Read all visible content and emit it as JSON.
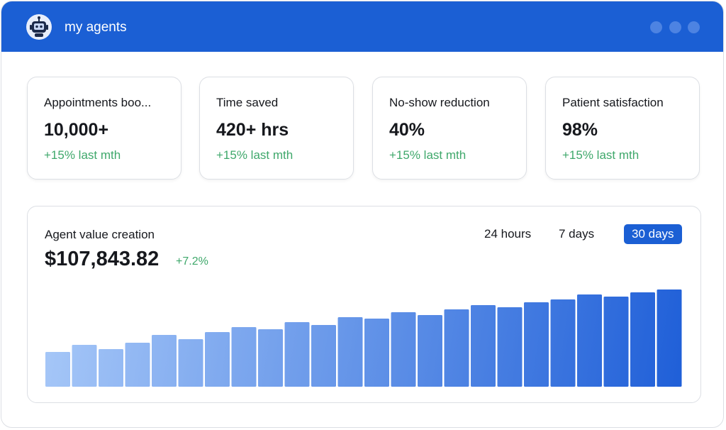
{
  "header": {
    "title": "my agents"
  },
  "stats": [
    {
      "label": "Appointments boo...",
      "value": "10,000+",
      "change": "+15% last mth"
    },
    {
      "label": "Time saved",
      "value": "420+ hrs",
      "change": "+15% last mth"
    },
    {
      "label": "No-show reduction",
      "value": "40%",
      "change": "+15% last mth"
    },
    {
      "label": "Patient satisfaction",
      "value": "98%",
      "change": "+15% last mth"
    }
  ],
  "panel": {
    "title": "Agent value creation",
    "amount": "$107,843.82",
    "change": "+7.2%",
    "tabs": [
      "24 hours",
      "7 days",
      "30 days"
    ],
    "active_tab": 2,
    "chart": {
      "type": "bar",
      "values": [
        49,
        59,
        53,
        62,
        73,
        67,
        77,
        84,
        81,
        91,
        87,
        98,
        96,
        105,
        101,
        109,
        115,
        112,
        119,
        123,
        130,
        127,
        133,
        137
      ],
      "ylim": [
        0,
        140
      ],
      "gradient": [
        "#a7c8f8",
        "#1f5fd8"
      ]
    }
  }
}
